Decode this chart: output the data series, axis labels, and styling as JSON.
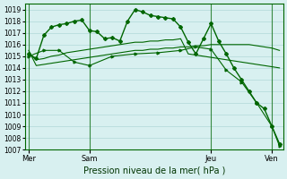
{
  "background_color": "#d8f0f0",
  "grid_color": "#b0d8d8",
  "line_color": "#006600",
  "title": "Pression niveau de la mer( hPa )",
  "ylim": [
    1007,
    1019.5
  ],
  "yticks": [
    1007,
    1008,
    1009,
    1010,
    1011,
    1012,
    1013,
    1014,
    1015,
    1016,
    1017,
    1018,
    1019
  ],
  "xtick_labels": [
    "Mer",
    "Sam",
    "Jeu",
    "Ven"
  ],
  "xtick_positions": [
    0,
    8,
    24,
    32
  ],
  "vline_positions": [
    0,
    8,
    24,
    32
  ],
  "series1": [
    1015.2,
    1014.7,
    1014.8,
    1015.0,
    1015.1,
    1015.3,
    1015.4,
    1015.5,
    1015.6,
    1015.7,
    1015.8,
    1015.9,
    1016.0,
    1016.1,
    1016.2,
    1016.2,
    1016.3,
    1016.3,
    1016.4,
    1016.4,
    1016.5,
    1015.2,
    1015.1,
    1015.0,
    1014.9,
    1014.8,
    1014.7,
    1014.6,
    1014.5,
    1014.4,
    1014.3,
    1014.2,
    1014.1,
    1014.0
  ],
  "series2": [
    1015.5,
    1014.2,
    1014.3,
    1014.4,
    1014.5,
    1014.6,
    1014.7,
    1014.8,
    1014.9,
    1015.0,
    1015.1,
    1015.2,
    1015.3,
    1015.4,
    1015.5,
    1015.5,
    1015.6,
    1015.6,
    1015.7,
    1015.7,
    1015.8,
    1015.8,
    1015.9,
    1015.9,
    1016.0,
    1016.0,
    1016.0,
    1016.0,
    1016.0,
    1016.0,
    1015.9,
    1015.8,
    1015.7,
    1015.5
  ],
  "series3_x": [
    0,
    1,
    2,
    3,
    4,
    5,
    6,
    7,
    8,
    9,
    10,
    11,
    12,
    13,
    14,
    15,
    16,
    17,
    18,
    19,
    20,
    21,
    22,
    23,
    24,
    25,
    26,
    27,
    28,
    29,
    30,
    31,
    32,
    33
  ],
  "series3": [
    1015.2,
    1014.8,
    1016.8,
    1017.5,
    1017.7,
    1017.8,
    1018.0,
    1018.1,
    1017.2,
    1017.1,
    1016.5,
    1016.6,
    1016.3,
    1018.0,
    1019.0,
    1018.8,
    1018.5,
    1018.4,
    1018.3,
    1018.2,
    1017.5,
    1016.2,
    1015.2,
    1016.5,
    1017.8,
    1016.3,
    1015.2,
    1014.0,
    1013.0,
    1012.0,
    1011.0,
    1010.5,
    1009.0,
    1007.5
  ],
  "series4_x": [
    0,
    2,
    4,
    6,
    8,
    11,
    14,
    17,
    20,
    22,
    24,
    26,
    28,
    30,
    32,
    33
  ],
  "series4": [
    1015.0,
    1015.5,
    1015.5,
    1014.5,
    1014.2,
    1015.0,
    1015.2,
    1015.3,
    1015.5,
    1015.8,
    1015.6,
    1013.8,
    1012.8,
    1011.0,
    1009.0,
    1007.3
  ]
}
